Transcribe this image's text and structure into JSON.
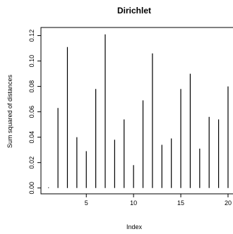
{
  "chart_data": {
    "type": "bar",
    "style": "histogram-spikes",
    "title": "Dirichlet",
    "xlabel": "Index",
    "ylabel": "Sum squared of distances",
    "x": [
      1,
      2,
      3,
      4,
      5,
      6,
      7,
      8,
      9,
      10,
      11,
      12,
      13,
      14,
      15,
      16,
      17,
      18,
      19,
      20
    ],
    "values": [
      0.0005,
      0.063,
      0.111,
      0.04,
      0.029,
      0.078,
      0.121,
      0.038,
      0.054,
      0.018,
      0.069,
      0.106,
      0.034,
      0.039,
      0.078,
      0.09,
      0.031,
      0.056,
      0.054,
      0.08
    ],
    "xlim": [
      0.2,
      20.6
    ],
    "ylim": [
      -0.0046,
      0.1264
    ],
    "x_ticks": [
      5,
      10,
      15,
      20
    ],
    "y_ticks": [
      0.0,
      0.02,
      0.04,
      0.06,
      0.08,
      0.1,
      0.12
    ],
    "y_tick_labels": [
      "0.00",
      "0.02",
      "0.04",
      "0.06",
      "0.08",
      "0.10",
      "0.12"
    ],
    "grid": false
  }
}
